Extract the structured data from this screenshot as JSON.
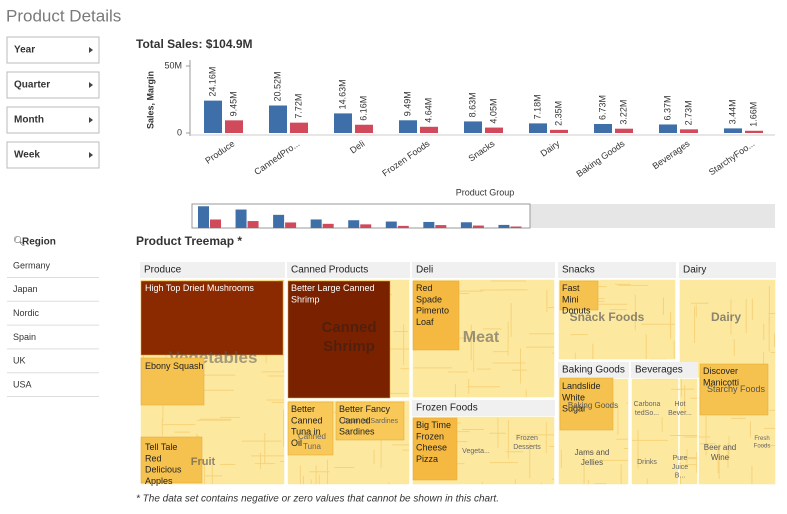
{
  "header": {
    "title": "Product Details"
  },
  "filters": [
    "Year",
    "Quarter",
    "Month",
    "Week"
  ],
  "region": {
    "title": "Region",
    "items": [
      "Germany",
      "Japan",
      "Nordic",
      "Spain",
      "UK",
      "USA"
    ]
  },
  "chart_data": {
    "type": "bar",
    "title": "Total Sales: $104.9M",
    "y_label": "Sales, Margin",
    "x_label": "Product Group",
    "categories": [
      "Produce",
      "CannedPro...",
      "Deli",
      "Frozen Foods",
      "Snacks",
      "Dairy",
      "Baking Goods",
      "Beverages",
      "StarchyFoo..."
    ],
    "series": [
      {
        "name": "Sales",
        "color": "#3e6fa8",
        "values": [
          24160000,
          20520000,
          14630000,
          9490000,
          8630000,
          7180000,
          6730000,
          6370000,
          3440000
        ],
        "value_labels": [
          "24.16M",
          "20.52M",
          "14.63M",
          "9.49M",
          "8.63M",
          "7.18M",
          "6.73M",
          "6.37M",
          "3.44M"
        ]
      },
      {
        "name": "Margin",
        "color": "#d04a5c",
        "values": [
          9450000,
          7720000,
          6160000,
          4640000,
          4050000,
          2350000,
          3220000,
          2730000,
          1660000
        ],
        "value_labels": [
          "9.45M",
          "7.72M",
          "6.16M",
          "4.64M",
          "4.05M",
          "2.35M",
          "3.22M",
          "2.73M",
          "1.66M"
        ]
      }
    ],
    "ylim": [
      0,
      50000000
    ],
    "yticks": [
      0,
      {
        "value": 50000000,
        "label": "50M"
      }
    ]
  },
  "treemap": {
    "title": "Product Treemap *",
    "groups": [
      "Produce",
      "Canned Products",
      "Deli",
      "Snacks",
      "Dairy",
      "Frozen Foods",
      "Baking Goods",
      "Beverages"
    ],
    "tiles": [
      "High Top Dried Mushrooms",
      "Vegetables",
      "Ebony Squash",
      "Tell Tale Red Delicious Apples",
      "Fruit",
      "Better Large Canned Shrimp",
      "Canned Shrimp",
      "Better Canned Tuna in Oil",
      "Canned Tuna",
      "Better Fancy Canned Sardines",
      "Canned Sardines",
      "Red Spade Pimento Loaf",
      "Meat",
      "Big Time Frozen Cheese Pizza",
      "Frozen Desserts",
      "Vegeta...",
      "Fast Mini Donuts",
      "Snack Foods",
      "Dairy",
      "Landslide White Sugar",
      "Baking Goods",
      "Jams and Jellies",
      "Carbona tedSo...",
      "Hot Bever...",
      "Drinks",
      "Pure Juice B...",
      "Discover Manicotti",
      "Starchy Foods",
      "Beer and Wine",
      "Fresh Foods"
    ],
    "footnote": "* The data set contains negative or zero values that cannot be shown in this chart."
  }
}
